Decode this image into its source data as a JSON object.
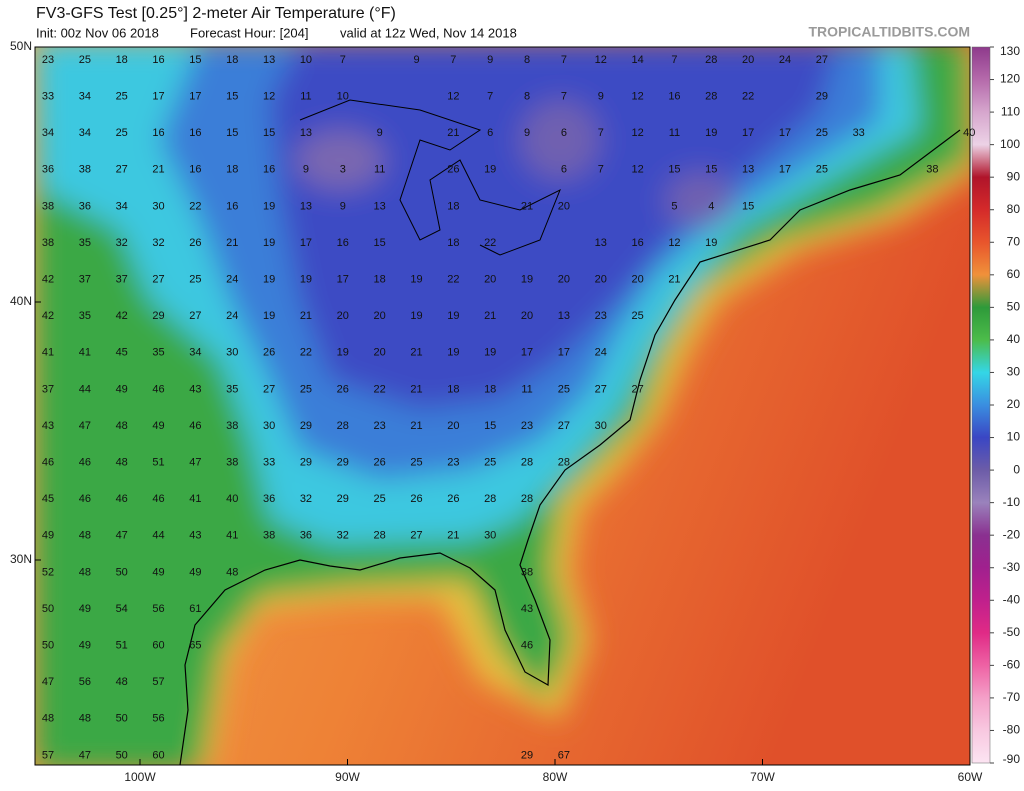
{
  "header": {
    "title": "FV3-GFS Test [0.25°] 2-meter Air Temperature (°F)",
    "init": "Init: 00z Nov 06 2018",
    "forecast": "Forecast Hour: [204]",
    "valid": "valid at 12z Wed, Nov 14 2018",
    "watermark": "TROPICALTIDBITS.COM"
  },
  "map": {
    "lat_labels": [
      "50N",
      "40N",
      "30N"
    ],
    "lon_labels": [
      "100W",
      "90W",
      "80W",
      "70W",
      "60W"
    ],
    "station_rows": [
      [
        23,
        25,
        18,
        16,
        15,
        18,
        13,
        10,
        7,
        null,
        9,
        7,
        9,
        8,
        7,
        12,
        14,
        7,
        28,
        20,
        24,
        27
      ],
      [
        33,
        34,
        25,
        17,
        17,
        15,
        12,
        11,
        10,
        null,
        null,
        12,
        7,
        8,
        7,
        9,
        12,
        16,
        28,
        22,
        null,
        29
      ],
      [
        34,
        34,
        25,
        16,
        16,
        15,
        15,
        13,
        null,
        9,
        null,
        21,
        6,
        9,
        6,
        7,
        12,
        11,
        19,
        17,
        17,
        25,
        33,
        null,
        null,
        40
      ],
      [
        36,
        38,
        27,
        21,
        16,
        18,
        16,
        9,
        3,
        11,
        null,
        26,
        19,
        null,
        6,
        7,
        12,
        15,
        15,
        13,
        17,
        25,
        null,
        null,
        38
      ],
      [
        38,
        36,
        34,
        30,
        22,
        16,
        19,
        13,
        9,
        13,
        null,
        18,
        null,
        21,
        20,
        null,
        null,
        5,
        4,
        15
      ],
      [
        38,
        35,
        32,
        32,
        26,
        21,
        19,
        17,
        16,
        15,
        null,
        18,
        22,
        null,
        null,
        13,
        16,
        12,
        19
      ],
      [
        42,
        37,
        37,
        27,
        25,
        24,
        19,
        19,
        17,
        18,
        19,
        22,
        20,
        19,
        20,
        20,
        20,
        21
      ],
      [
        42,
        35,
        42,
        29,
        27,
        24,
        19,
        21,
        20,
        20,
        19,
        19,
        21,
        20,
        13,
        23,
        25
      ],
      [
        41,
        41,
        45,
        35,
        34,
        30,
        26,
        22,
        19,
        20,
        21,
        19,
        19,
        17,
        17,
        24
      ],
      [
        37,
        44,
        49,
        46,
        43,
        35,
        27,
        25,
        26,
        22,
        21,
        18,
        18,
        11,
        25,
        27,
        27
      ],
      [
        43,
        47,
        48,
        49,
        46,
        38,
        30,
        29,
        28,
        23,
        21,
        20,
        15,
        23,
        27,
        30
      ],
      [
        46,
        46,
        48,
        51,
        47,
        38,
        33,
        29,
        29,
        26,
        25,
        23,
        25,
        28,
        28
      ],
      [
        45,
        46,
        46,
        46,
        41,
        40,
        36,
        32,
        29,
        25,
        26,
        26,
        28,
        28
      ],
      [
        49,
        48,
        47,
        44,
        43,
        41,
        38,
        36,
        32,
        28,
        27,
        21,
        30
      ],
      [
        52,
        48,
        50,
        49,
        49,
        48,
        null,
        null,
        null,
        null,
        null,
        null,
        null,
        38
      ],
      [
        50,
        49,
        54,
        56,
        61,
        null,
        null,
        null,
        null,
        null,
        null,
        null,
        null,
        43
      ],
      [
        50,
        49,
        51,
        60,
        65,
        null,
        null,
        null,
        null,
        null,
        null,
        null,
        null,
        46
      ],
      [
        47,
        56,
        48,
        57
      ],
      [
        48,
        48,
        50,
        56
      ],
      [
        57,
        47,
        50,
        60,
        null,
        null,
        null,
        null,
        null,
        null,
        null,
        null,
        null,
        29,
        67
      ]
    ]
  },
  "colorbar": {
    "ticks": [
      130,
      120,
      110,
      100,
      90,
      80,
      70,
      60,
      50,
      40,
      30,
      20,
      10,
      0,
      -10,
      -20,
      -30,
      -40,
      -50,
      -60,
      -70,
      -80,
      -90
    ],
    "colors": [
      "#8e3a8c",
      "#b56aab",
      "#d6a6cd",
      "#ecd2e6",
      "#b0142a",
      "#d42a2a",
      "#e8552c",
      "#f0913a",
      "#2e9a3a",
      "#4cbc4a",
      "#34d6e6",
      "#3a8ee0",
      "#3a46c4",
      "#6c5ca8",
      "#9a82bc",
      "#8a3090",
      "#a0208e",
      "#c0208c",
      "#e02a86",
      "#ee62a4",
      "#f4a0c8",
      "#f8c8e0",
      "#fce4f2"
    ]
  }
}
